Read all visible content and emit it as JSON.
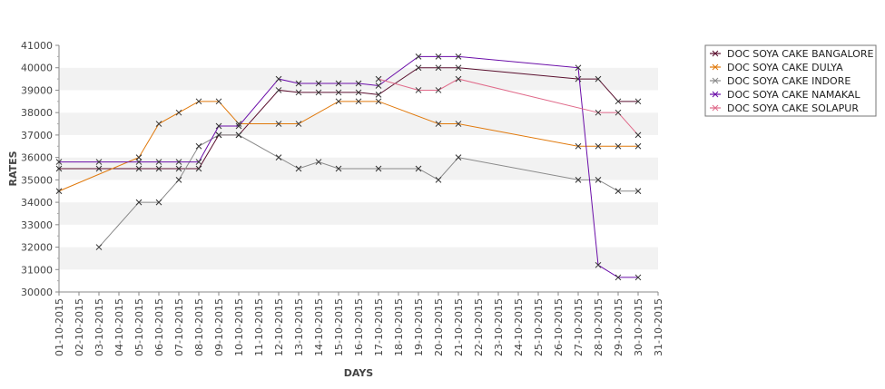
{
  "chart_data": {
    "type": "line",
    "xlabel": "DAYS",
    "ylabel": "RATES",
    "ylim": [
      30000,
      41000
    ],
    "y_ticks": [
      30000,
      31000,
      32000,
      33000,
      34000,
      35000,
      36000,
      37000,
      38000,
      39000,
      40000,
      41000
    ],
    "x_ticks": [
      "01-10-2015",
      "02-10-2015",
      "03-10-2015",
      "04-10-2015",
      "05-10-2015",
      "06-10-2015",
      "07-10-2015",
      "08-10-2015",
      "09-10-2015",
      "10-10-2015",
      "11-10-2015",
      "12-10-2015",
      "13-10-2015",
      "14-10-2015",
      "15-10-2015",
      "16-10-2015",
      "17-10-2015",
      "18-10-2015",
      "19-10-2015",
      "20-10-2015",
      "21-10-2015",
      "22-10-2015",
      "23-10-2015",
      "24-10-2015",
      "25-10-2015",
      "26-10-2015",
      "27-10-2015",
      "28-10-2015",
      "29-10-2015",
      "30-10-2015",
      "31-10-2015"
    ],
    "xlim": [
      "01-10-2015",
      "31-10-2015"
    ],
    "grid": "alternating horizontal bands",
    "legend_position": "right",
    "series": [
      {
        "name": "DOC SOYA CAKE BANGALORE",
        "color": "#5a0f2e",
        "points": [
          [
            "01-10-2015",
            35500
          ],
          [
            "03-10-2015",
            35500
          ],
          [
            "05-10-2015",
            35500
          ],
          [
            "06-10-2015",
            35500
          ],
          [
            "07-10-2015",
            35500
          ],
          [
            "08-10-2015",
            35500
          ],
          [
            "09-10-2015",
            37000
          ],
          [
            "10-10-2015",
            37000
          ],
          [
            "12-10-2015",
            39000
          ],
          [
            "13-10-2015",
            38900
          ],
          [
            "14-10-2015",
            38900
          ],
          [
            "15-10-2015",
            38900
          ],
          [
            "16-10-2015",
            38900
          ],
          [
            "17-10-2015",
            38800
          ],
          [
            "19-10-2015",
            40000
          ],
          [
            "20-10-2015",
            40000
          ],
          [
            "21-10-2015",
            40000
          ],
          [
            "27-10-2015",
            39500
          ],
          [
            "28-10-2015",
            39500
          ],
          [
            "29-10-2015",
            38500
          ],
          [
            "30-10-2015",
            38500
          ]
        ]
      },
      {
        "name": "DOC SOYA CAKE DULYA",
        "color": "#e0780a",
        "points": [
          [
            "01-10-2015",
            34500
          ],
          [
            "05-10-2015",
            36000
          ],
          [
            "06-10-2015",
            37500
          ],
          [
            "07-10-2015",
            38000
          ],
          [
            "08-10-2015",
            38500
          ],
          [
            "09-10-2015",
            38500
          ],
          [
            "10-10-2015",
            37500
          ],
          [
            "12-10-2015",
            37500
          ],
          [
            "13-10-2015",
            37500
          ],
          [
            "15-10-2015",
            38500
          ],
          [
            "16-10-2015",
            38500
          ],
          [
            "17-10-2015",
            38500
          ],
          [
            "20-10-2015",
            37500
          ],
          [
            "21-10-2015",
            37500
          ],
          [
            "27-10-2015",
            36500
          ],
          [
            "28-10-2015",
            36500
          ],
          [
            "29-10-2015",
            36500
          ],
          [
            "30-10-2015",
            36500
          ]
        ]
      },
      {
        "name": "DOC SOYA CAKE INDORE",
        "color": "#8a8a8a",
        "points": [
          [
            "03-10-2015",
            32000
          ],
          [
            "05-10-2015",
            34000
          ],
          [
            "06-10-2015",
            34000
          ],
          [
            "07-10-2015",
            35000
          ],
          [
            "08-10-2015",
            36500
          ],
          [
            "09-10-2015",
            37000
          ],
          [
            "10-10-2015",
            37000
          ],
          [
            "12-10-2015",
            36000
          ],
          [
            "13-10-2015",
            35500
          ],
          [
            "14-10-2015",
            35800
          ],
          [
            "15-10-2015",
            35500
          ],
          [
            "17-10-2015",
            35500
          ],
          [
            "19-10-2015",
            35500
          ],
          [
            "20-10-2015",
            35000
          ],
          [
            "21-10-2015",
            36000
          ],
          [
            "27-10-2015",
            35000
          ],
          [
            "28-10-2015",
            35000
          ],
          [
            "29-10-2015",
            34500
          ],
          [
            "30-10-2015",
            34500
          ]
        ]
      },
      {
        "name": "DOC SOYA CAKE NAMAKAL",
        "color": "#6a0da8",
        "points": [
          [
            "01-10-2015",
            35800
          ],
          [
            "03-10-2015",
            35800
          ],
          [
            "05-10-2015",
            35800
          ],
          [
            "06-10-2015",
            35800
          ],
          [
            "07-10-2015",
            35800
          ],
          [
            "08-10-2015",
            35800
          ],
          [
            "09-10-2015",
            37400
          ],
          [
            "10-10-2015",
            37400
          ],
          [
            "12-10-2015",
            39500
          ],
          [
            "13-10-2015",
            39300
          ],
          [
            "14-10-2015",
            39300
          ],
          [
            "15-10-2015",
            39300
          ],
          [
            "16-10-2015",
            39300
          ],
          [
            "17-10-2015",
            39200
          ],
          [
            "19-10-2015",
            40500
          ],
          [
            "20-10-2015",
            40500
          ],
          [
            "21-10-2015",
            40500
          ],
          [
            "27-10-2015",
            40000
          ],
          [
            "28-10-2015",
            31200
          ],
          [
            "29-10-2015",
            30650
          ],
          [
            "30-10-2015",
            30650
          ]
        ]
      },
      {
        "name": "DOC SOYA CAKE SOLAPUR",
        "color": "#e06a8a",
        "points": [
          [
            "17-10-2015",
            39500
          ],
          [
            "19-10-2015",
            39000
          ],
          [
            "20-10-2015",
            39000
          ],
          [
            "21-10-2015",
            39500
          ],
          [
            "28-10-2015",
            38000
          ],
          [
            "29-10-2015",
            38000
          ],
          [
            "30-10-2015",
            37000
          ]
        ]
      }
    ]
  }
}
